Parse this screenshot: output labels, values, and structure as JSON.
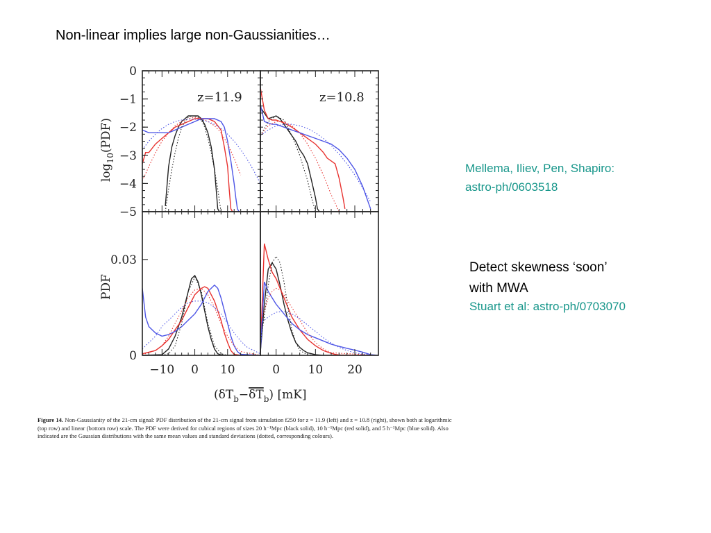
{
  "slide": {
    "title": "Non-linear implies large non-Gaussianities…",
    "reference_1": "Mellema, Iliev, Pen, Shapiro:",
    "reference_1_id": "astro-ph/0603518",
    "note_line1": "Detect skewness ‘soon’",
    "note_line2": "with MWA",
    "reference_2": "Stuart et al: astro-ph/0703070"
  },
  "figure": {
    "panel_left_label": "z=11.9",
    "panel_right_label": "z=10.8",
    "ylabel_top": "log10(PDF)",
    "ylabel_bottom": "PDF",
    "xlabel": "(δT_b − δT̄_b)  [mK]",
    "caption_lead": "Figure 14.",
    "caption_text": "Non-Gaussianity of the 21-cm signal: PDF distribution of the 21-cm signal from simulation f250 for z = 11.9 (left) and z = 10.8 (right), shown both at logarithmic (top row) and linear (bottom row) scale. The PDF were derived for cubical regions of sizes 20 h⁻¹Mpc (black solid), 10 h⁻¹Mpc (red solid), and 5 h⁻¹Mpc (blue solid). Also indicated are the Gaussian distributions with the same mean values and standard deviations (dotted, corresponding colours).",
    "colors": {
      "black": "#222222",
      "red": "#e8322f",
      "blue": "#4d55e6"
    }
  },
  "chart_data": [
    {
      "type": "line",
      "panel": "top-left",
      "label": "z=11.9",
      "ylabel": "log10(PDF)",
      "xlim": [
        -16,
        20
      ],
      "ylim": [
        -5,
        0
      ],
      "yticks": [
        0,
        -1,
        -2,
        -3,
        -4,
        -5
      ],
      "series": [
        {
          "color": "black",
          "style": "solid",
          "x": [
            -9,
            -8,
            -7,
            -6,
            -5,
            -4,
            -3,
            -2,
            -1,
            0,
            1,
            2,
            3,
            4,
            5,
            6,
            6.5,
            7,
            7.5,
            8
          ],
          "y": [
            -4.8,
            -3.4,
            -2.7,
            -2.3,
            -2.0,
            -1.8,
            -1.7,
            -1.6,
            -1.6,
            -1.6,
            -1.6,
            -1.7,
            -1.9,
            -2.2,
            -2.7,
            -3.5,
            -4.2,
            -4.9,
            -5.0,
            -5.0
          ]
        },
        {
          "color": "red",
          "style": "solid",
          "x": [
            -16,
            -15,
            -14,
            -12,
            -10,
            -8,
            -6,
            -4,
            -2,
            0,
            2,
            4,
            6,
            8,
            9,
            10,
            10.5,
            11,
            11.5,
            12
          ],
          "y": [
            -3.3,
            -2.9,
            -2.9,
            -2.6,
            -2.4,
            -2.2,
            -2.0,
            -1.9,
            -1.8,
            -1.7,
            -1.7,
            -1.7,
            -1.8,
            -2.1,
            -2.7,
            -3.4,
            -4.2,
            -4.9,
            -5.0,
            -5.0
          ]
        },
        {
          "color": "blue",
          "style": "solid",
          "x": [
            -16,
            -14,
            -12,
            -10,
            -8,
            -6,
            -4,
            -2,
            0,
            2,
            4,
            6,
            8,
            9,
            10,
            11,
            12,
            12.5,
            13,
            13.5
          ],
          "y": [
            -2.1,
            -2.2,
            -2.2,
            -2.2,
            -2.2,
            -2.1,
            -2.0,
            -1.9,
            -1.8,
            -1.7,
            -1.7,
            -1.7,
            -1.8,
            -2.0,
            -2.5,
            -3.2,
            -4.0,
            -4.5,
            -4.9,
            -5.0
          ]
        },
        {
          "color": "black",
          "style": "dotted",
          "x": [
            -9,
            -8,
            -7,
            -6,
            -5,
            -4,
            -3,
            -2,
            -1,
            0,
            1,
            2,
            3,
            4,
            5,
            6,
            7,
            8
          ],
          "y": [
            -5.0,
            -4.2,
            -3.5,
            -2.9,
            -2.4,
            -2.0,
            -1.8,
            -1.65,
            -1.6,
            -1.6,
            -1.65,
            -1.75,
            -2.0,
            -2.4,
            -2.9,
            -3.5,
            -4.2,
            -5.0
          ]
        },
        {
          "color": "red",
          "style": "dotted",
          "x": [
            -16,
            -14,
            -12,
            -10,
            -8,
            -6,
            -4,
            -2,
            0,
            2,
            4,
            6,
            8,
            10,
            12,
            14
          ],
          "y": [
            -3.9,
            -3.4,
            -2.9,
            -2.5,
            -2.2,
            -1.95,
            -1.8,
            -1.7,
            -1.65,
            -1.7,
            -1.8,
            -1.95,
            -2.2,
            -2.6,
            -3.1,
            -3.7
          ]
        },
        {
          "color": "blue",
          "style": "dotted",
          "x": [
            -16,
            -14,
            -12,
            -10,
            -8,
            -6,
            -4,
            -2,
            0,
            2,
            4,
            6,
            8,
            10,
            12,
            14,
            16,
            18,
            20
          ],
          "y": [
            -2.8,
            -2.5,
            -2.25,
            -2.05,
            -1.9,
            -1.8,
            -1.75,
            -1.72,
            -1.72,
            -1.75,
            -1.8,
            -1.9,
            -2.05,
            -2.25,
            -2.5,
            -2.8,
            -3.15,
            -3.55,
            -4.0
          ]
        }
      ]
    },
    {
      "type": "line",
      "panel": "top-right",
      "label": "z=10.8",
      "xlim": [
        -4,
        26
      ],
      "ylim": [
        -5,
        0
      ],
      "series": [
        {
          "color": "black",
          "style": "solid",
          "x": [
            -4,
            -3,
            -2,
            -1,
            0,
            1,
            2,
            3,
            4,
            5,
            6,
            7,
            8,
            9,
            10,
            10.5,
            11
          ],
          "y": [
            -1.3,
            -1.5,
            -1.7,
            -1.65,
            -1.6,
            -1.7,
            -1.9,
            -2.1,
            -2.3,
            -2.5,
            -2.8,
            -3.0,
            -3.3,
            -3.9,
            -4.5,
            -4.9,
            -5.0
          ]
        },
        {
          "color": "red",
          "style": "solid",
          "x": [
            -4,
            -3,
            -2,
            -1,
            0,
            2,
            4,
            6,
            8,
            10,
            12,
            13,
            14,
            15,
            16,
            17,
            17.5
          ],
          "y": [
            -0.6,
            -1.4,
            -1.7,
            -1.75,
            -1.75,
            -1.85,
            -2.0,
            -2.2,
            -2.4,
            -2.6,
            -2.9,
            -3.1,
            -3.2,
            -3.3,
            -3.8,
            -4.5,
            -4.9
          ]
        },
        {
          "color": "blue",
          "style": "solid",
          "x": [
            -4,
            -3,
            -2,
            -1,
            0,
            2,
            4,
            6,
            8,
            10,
            12,
            14,
            16,
            18,
            20,
            22,
            23,
            24
          ],
          "y": [
            -1.2,
            -1.8,
            -1.85,
            -1.9,
            -1.9,
            -2.0,
            -2.1,
            -2.2,
            -2.3,
            -2.4,
            -2.5,
            -2.6,
            -2.8,
            -3.1,
            -3.5,
            -4.1,
            -4.5,
            -4.9
          ]
        },
        {
          "color": "black",
          "style": "dotted",
          "x": [
            -4,
            -2,
            0,
            2,
            4,
            6,
            8,
            9,
            10
          ],
          "y": [
            -2.3,
            -1.8,
            -1.6,
            -1.75,
            -2.3,
            -3.0,
            -3.9,
            -4.5,
            -5.0
          ]
        },
        {
          "color": "red",
          "style": "dotted",
          "x": [
            -4,
            -2,
            0,
            2,
            4,
            6,
            8,
            10,
            12,
            14,
            16
          ],
          "y": [
            -2.3,
            -1.95,
            -1.8,
            -1.8,
            -1.95,
            -2.2,
            -2.6,
            -3.1,
            -3.7,
            -4.4,
            -5.0
          ]
        },
        {
          "color": "blue",
          "style": "dotted",
          "x": [
            -4,
            -2,
            0,
            2,
            4,
            6,
            8,
            10,
            12,
            14,
            16,
            18,
            20,
            22,
            24
          ],
          "y": [
            -2.3,
            -2.1,
            -1.95,
            -1.9,
            -1.9,
            -1.95,
            -2.05,
            -2.2,
            -2.4,
            -2.65,
            -2.95,
            -3.3,
            -3.7,
            -4.15,
            -4.65
          ]
        }
      ]
    },
    {
      "type": "line",
      "panel": "bottom-left",
      "ylabel": "PDF",
      "xlim": [
        -16,
        20
      ],
      "ylim": [
        0,
        0.045
      ],
      "yticks": [
        0,
        0.03
      ],
      "xticks": [
        -10,
        0,
        10
      ],
      "series": [
        {
          "color": "black",
          "style": "solid",
          "x": [
            -16,
            -10,
            -8,
            -6,
            -4,
            -3,
            -2,
            -1,
            0,
            1,
            2,
            3,
            4,
            5,
            6,
            7,
            8,
            10,
            20
          ],
          "y": [
            0,
            0.0002,
            0.002,
            0.006,
            0.012,
            0.016,
            0.02,
            0.024,
            0.025,
            0.023,
            0.019,
            0.014,
            0.009,
            0.005,
            0.002,
            0.0005,
            0.0001,
            0,
            0
          ]
        },
        {
          "color": "red",
          "style": "solid",
          "x": [
            -16,
            -14,
            -12,
            -10,
            -8,
            -6,
            -4,
            -2,
            0,
            2,
            3,
            4,
            6,
            8,
            9,
            10,
            11,
            12,
            14,
            20
          ],
          "y": [
            0.0005,
            0.001,
            0.0015,
            0.003,
            0.005,
            0.008,
            0.011,
            0.015,
            0.019,
            0.021,
            0.0215,
            0.021,
            0.017,
            0.011,
            0.007,
            0.004,
            0.0015,
            0.0003,
            0,
            0
          ]
        },
        {
          "color": "blue",
          "style": "solid",
          "x": [
            -16,
            -15,
            -14,
            -12,
            -10,
            -8,
            -6,
            -4,
            -2,
            0,
            2,
            4,
            5,
            6,
            7,
            8,
            9,
            10,
            11,
            12,
            13,
            14,
            20
          ],
          "y": [
            0.021,
            0.012,
            0.009,
            0.007,
            0.006,
            0.0065,
            0.0075,
            0.009,
            0.011,
            0.013,
            0.016,
            0.02,
            0.021,
            0.022,
            0.021,
            0.018,
            0.014,
            0.01,
            0.006,
            0.003,
            0.0012,
            0.0003,
            0
          ]
        },
        {
          "color": "black",
          "style": "dotted",
          "x": [
            -16,
            -10,
            -8,
            -6,
            -4,
            -2,
            0,
            2,
            4,
            6,
            8,
            10,
            20
          ],
          "y": [
            0,
            0,
            0.0005,
            0.003,
            0.01,
            0.02,
            0.0245,
            0.02,
            0.01,
            0.003,
            0.0005,
            0,
            0
          ]
        },
        {
          "color": "red",
          "style": "dotted",
          "x": [
            -16,
            -12,
            -10,
            -8,
            -6,
            -4,
            -2,
            0,
            2,
            4,
            6,
            8,
            10,
            12,
            14,
            20
          ],
          "y": [
            0.0002,
            0.0015,
            0.003,
            0.006,
            0.01,
            0.014,
            0.018,
            0.0205,
            0.021,
            0.019,
            0.015,
            0.01,
            0.006,
            0.003,
            0.0012,
            0
          ]
        },
        {
          "color": "blue",
          "style": "dotted",
          "x": [
            -16,
            -14,
            -12,
            -10,
            -8,
            -6,
            -4,
            -2,
            0,
            2,
            4,
            6,
            8,
            10,
            12,
            14,
            16,
            20
          ],
          "y": [
            0.002,
            0.004,
            0.006,
            0.009,
            0.011,
            0.013,
            0.015,
            0.0165,
            0.017,
            0.017,
            0.0165,
            0.015,
            0.013,
            0.01,
            0.007,
            0.0045,
            0.0025,
            0.0005
          ]
        }
      ]
    },
    {
      "type": "line",
      "panel": "bottom-right",
      "xlim": [
        -4,
        26
      ],
      "ylim": [
        0,
        0.045
      ],
      "xticks": [
        0,
        10,
        20
      ],
      "series": [
        {
          "color": "black",
          "style": "solid",
          "x": [
            -4,
            -3,
            -2,
            -1,
            0,
            1,
            2,
            3,
            4,
            5,
            6,
            7,
            8,
            10,
            12,
            26
          ],
          "y": [
            0.001,
            0.016,
            0.027,
            0.029,
            0.027,
            0.022,
            0.016,
            0.011,
            0.007,
            0.004,
            0.0025,
            0.0015,
            0.0008,
            0.0002,
            0,
            0
          ]
        },
        {
          "color": "red",
          "style": "solid",
          "x": [
            -4,
            -3,
            -2,
            -1,
            0,
            1,
            2,
            3,
            4,
            6,
            8,
            10,
            12,
            14,
            15,
            16,
            26
          ],
          "y": [
            0.001,
            0.035,
            0.03,
            0.026,
            0.024,
            0.021,
            0.018,
            0.015,
            0.012,
            0.008,
            0.005,
            0.003,
            0.0015,
            0.0006,
            0.0003,
            0.0001,
            0
          ]
        },
        {
          "color": "blue",
          "style": "solid",
          "x": [
            -4,
            -3,
            -2,
            -1,
            0,
            2,
            4,
            6,
            8,
            10,
            12,
            14,
            16,
            18,
            20,
            22,
            23,
            24,
            26
          ],
          "y": [
            0.001,
            0.023,
            0.02,
            0.018,
            0.016,
            0.013,
            0.01,
            0.008,
            0.0065,
            0.0055,
            0.0045,
            0.0035,
            0.0028,
            0.0022,
            0.0016,
            0.001,
            0.0006,
            0.0002,
            0
          ]
        },
        {
          "color": "black",
          "style": "dotted",
          "x": [
            -4,
            -3,
            -2,
            -1,
            0,
            1,
            2,
            3,
            4,
            5,
            6,
            8,
            10,
            26
          ],
          "y": [
            0.004,
            0.012,
            0.022,
            0.029,
            0.031,
            0.029,
            0.023,
            0.015,
            0.008,
            0.004,
            0.0015,
            0.0002,
            0,
            0
          ]
        },
        {
          "color": "red",
          "style": "dotted",
          "x": [
            -4,
            -3,
            -2,
            -1,
            0,
            1,
            2,
            3,
            4,
            6,
            8,
            10,
            12,
            14,
            26
          ],
          "y": [
            0.01,
            0.014,
            0.018,
            0.02,
            0.021,
            0.0205,
            0.019,
            0.017,
            0.015,
            0.011,
            0.007,
            0.004,
            0.002,
            0.0008,
            0
          ]
        },
        {
          "color": "blue",
          "style": "dotted",
          "x": [
            -4,
            -2,
            0,
            2,
            4,
            6,
            8,
            10,
            12,
            14,
            16,
            18,
            20,
            22,
            24,
            26
          ],
          "y": [
            0.01,
            0.012,
            0.0135,
            0.0138,
            0.013,
            0.0115,
            0.0095,
            0.0075,
            0.0055,
            0.0038,
            0.0025,
            0.0015,
            0.0008,
            0.0004,
            0.0002,
            0
          ]
        }
      ]
    }
  ]
}
